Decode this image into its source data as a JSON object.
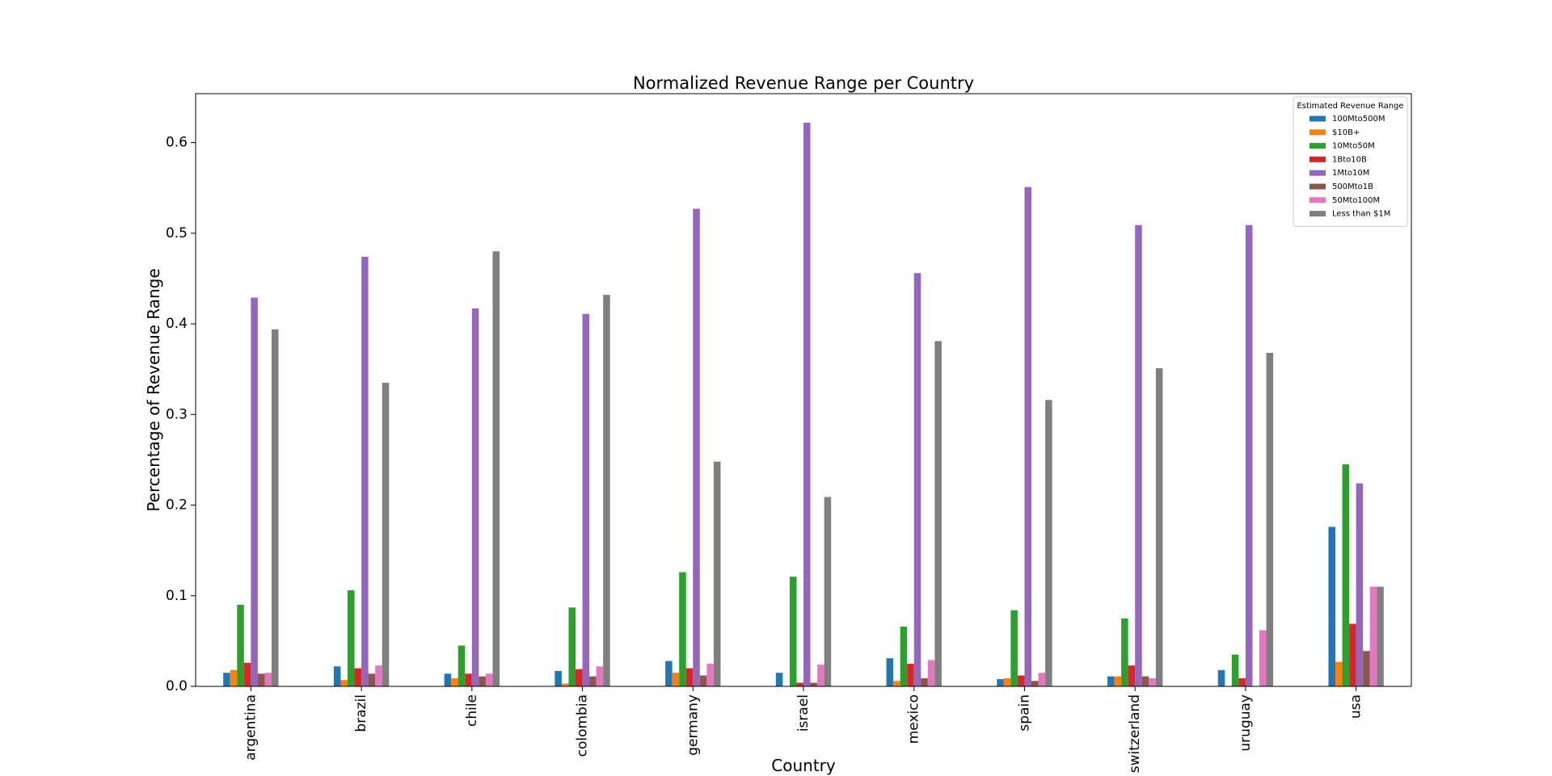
{
  "chart_data": {
    "type": "bar",
    "title": "Normalized Revenue Range per Country",
    "x_label": "Country",
    "y_label": "Percentage of Revenue Range",
    "categories": [
      "argentina",
      "brazil",
      "chile",
      "colombia",
      "germany",
      "israel",
      "mexico",
      "spain",
      "switzerland",
      "uruguay",
      "usa"
    ],
    "legend_title": "Estimated Revenue Range",
    "legend_position": "upper right",
    "grid": false,
    "ylim": [
      0,
      0.654
    ],
    "yticks": [
      {
        "value": 0,
        "label": "0.0"
      },
      0.1,
      0.2,
      0.3,
      0.4,
      0.5,
      0.6
    ],
    "series": [
      {
        "name": "100Mto500M",
        "color": "#1f77b4",
        "values": [
          0.015,
          0.022,
          0.014,
          0.017,
          0.028,
          0.015,
          0.031,
          0.008,
          0.011,
          0.018,
          0.176
        ]
      },
      {
        "name": "$10B+",
        "color": "#ff7f0e",
        "values": [
          0.018,
          0.007,
          0.009,
          0.003,
          0.015,
          0,
          0.006,
          0.009,
          0.011,
          0,
          0.027
        ]
      },
      {
        "name": "10Mto50M",
        "color": "#2ca02c",
        "values": [
          0.09,
          0.106,
          0.045,
          0.087,
          0.126,
          0.121,
          0.066,
          0.084,
          0.075,
          0.035,
          0.245
        ]
      },
      {
        "name": "1Bto10B",
        "color": "#d62728",
        "values": [
          0.026,
          0.02,
          0.014,
          0.019,
          0.02,
          0.004,
          0.025,
          0.012,
          0.023,
          0.009,
          0.069
        ]
      },
      {
        "name": "1Mto10M",
        "color": "#9467bd",
        "values": [
          0.429,
          0.474,
          0.417,
          0.411,
          0.527,
          0.622,
          0.456,
          0.551,
          0.509,
          0.509,
          0.224
        ]
      },
      {
        "name": "500Mto1B",
        "color": "#8c564b",
        "values": [
          0.014,
          0.014,
          0.011,
          0.011,
          0.012,
          0.004,
          0.009,
          0.006,
          0.011,
          0,
          0.039
        ]
      },
      {
        "name": "50Mto100M",
        "color": "#e377c2",
        "values": [
          0.015,
          0.023,
          0.014,
          0.022,
          0.025,
          0.024,
          0.029,
          0.015,
          0.009,
          0.062,
          0.11
        ]
      },
      {
        "name": "Less than $1M",
        "color": "#7f7f7f",
        "values": [
          0.394,
          0.335,
          0.48,
          0.432,
          0.248,
          0.209,
          0.381,
          0.316,
          0.351,
          0.368,
          0.11
        ]
      }
    ]
  }
}
